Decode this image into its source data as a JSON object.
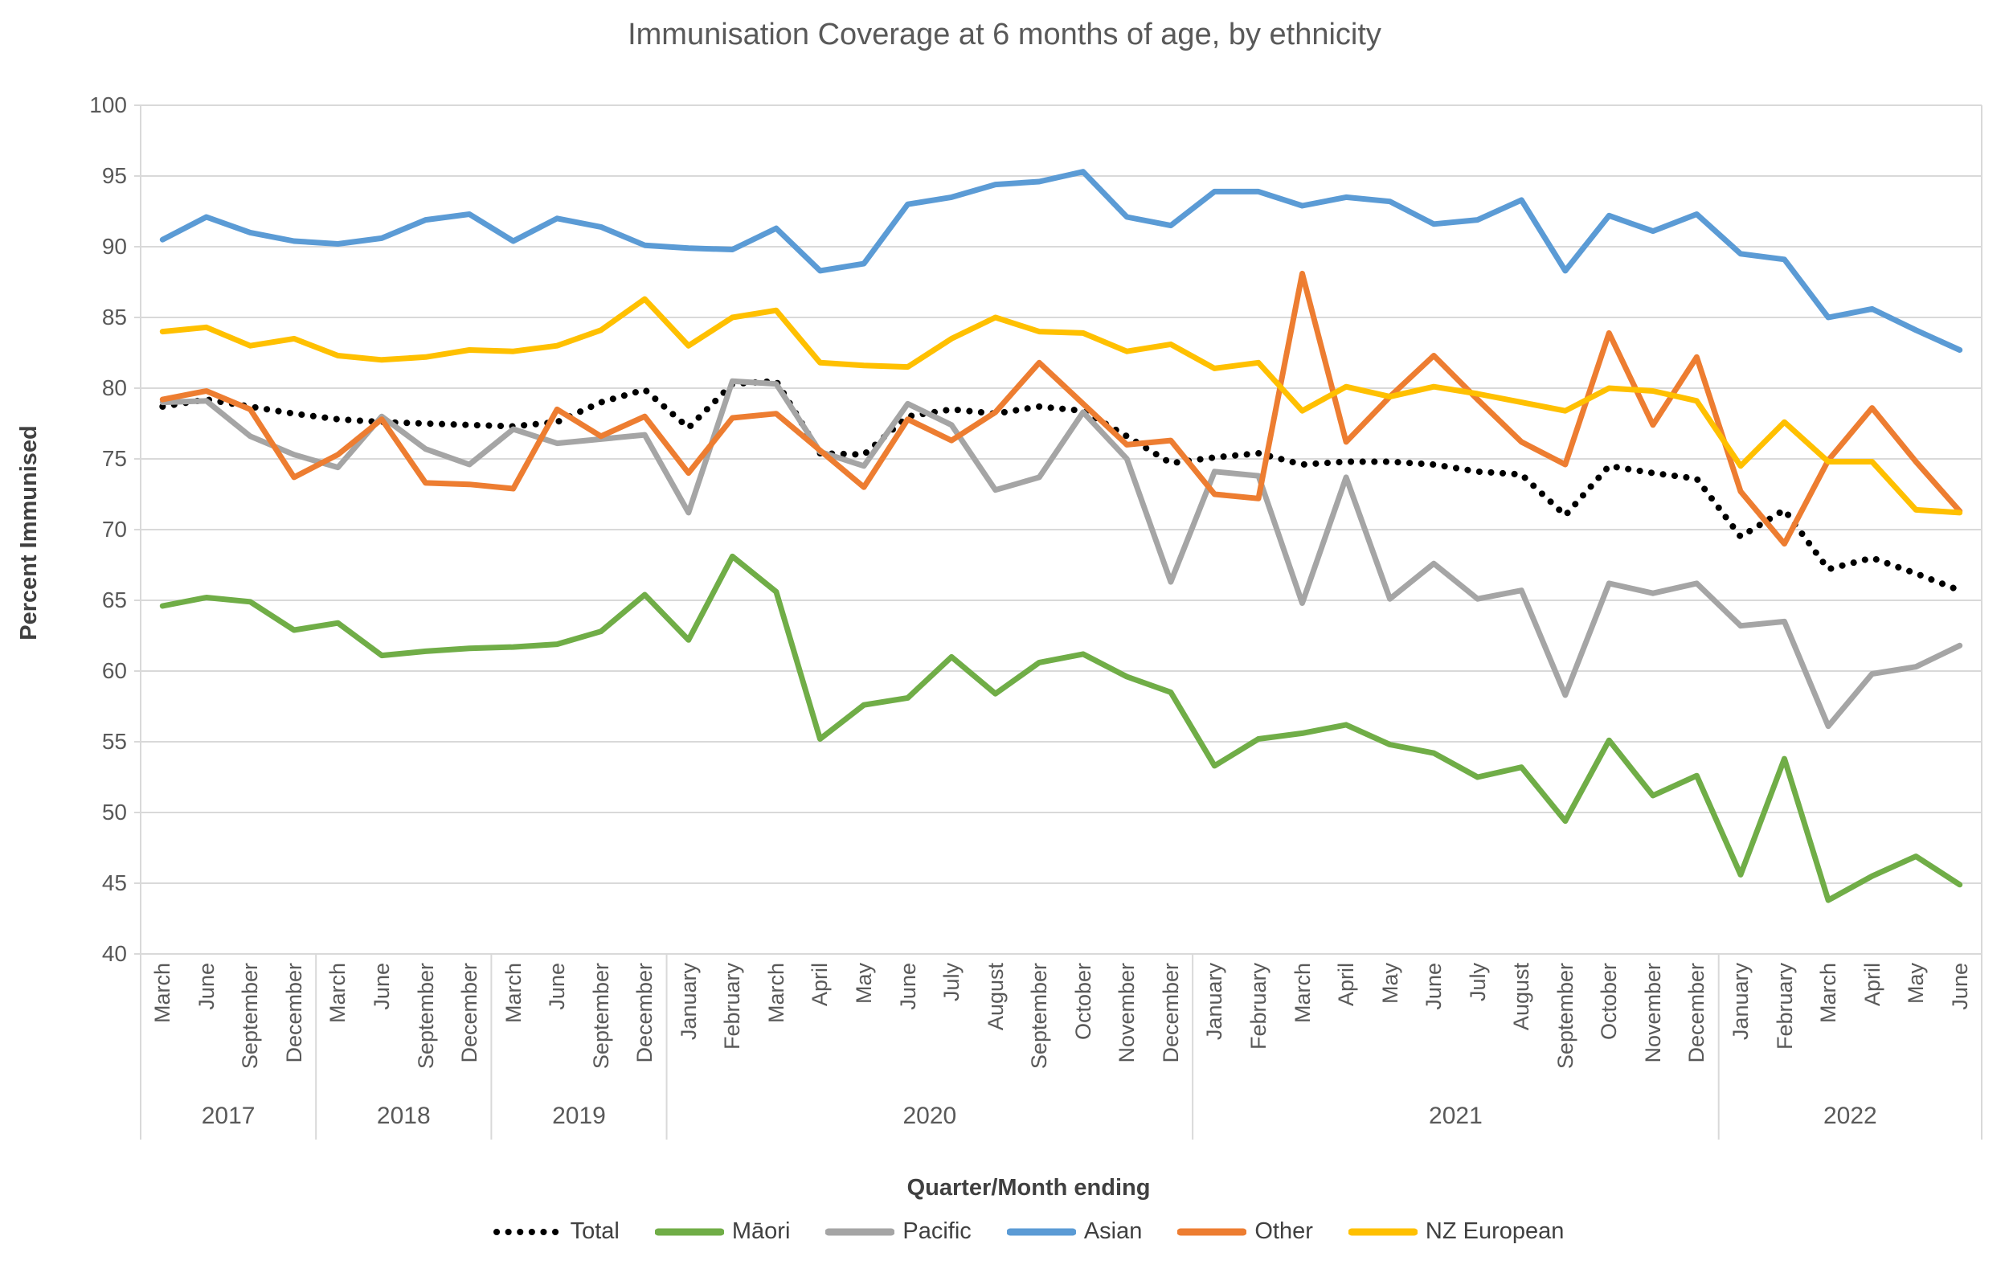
{
  "chart_data": {
    "type": "line",
    "title": "Immunisation Coverage at 6 months of age, by ethnicity",
    "xlabel": "Quarter/Month ending",
    "ylabel": "Percent Immunised",
    "ylim": [
      40,
      100
    ],
    "ytick_step": 5,
    "yticks": [
      100,
      95,
      90,
      85,
      80,
      75,
      70,
      65,
      60,
      55,
      50,
      45,
      40
    ],
    "grid": true,
    "legend_position": "bottom",
    "x_axis": {
      "year_groups": [
        {
          "year": "2017",
          "months": [
            "March",
            "June",
            "September",
            "December"
          ]
        },
        {
          "year": "2018",
          "months": [
            "March",
            "June",
            "September",
            "December"
          ]
        },
        {
          "year": "2019",
          "months": [
            "March",
            "June",
            "September",
            "December"
          ]
        },
        {
          "year": "2020",
          "months": [
            "January",
            "February",
            "March",
            "April",
            "May",
            "June",
            "July",
            "August",
            "September",
            "October",
            "November",
            "December"
          ]
        },
        {
          "year": "2021",
          "months": [
            "January",
            "February",
            "March",
            "April",
            "May",
            "June",
            "July",
            "August",
            "September",
            "October",
            "November",
            "December"
          ]
        },
        {
          "year": "2022",
          "months": [
            "January",
            "February",
            "March",
            "April",
            "May",
            "June"
          ]
        }
      ]
    },
    "series": [
      {
        "name": "Total",
        "color": "#000000",
        "style": "dotted",
        "values": [
          78.7,
          79.2,
          78.7,
          78.2,
          77.8,
          77.6,
          77.5,
          77.4,
          77.3,
          77.6,
          79.0,
          79.9,
          77.2,
          80.3,
          80.5,
          75.4,
          75.3,
          78.0,
          78.5,
          78.2,
          78.7,
          78.4,
          76.6,
          74.7,
          75.1,
          75.4,
          74.6,
          74.8,
          74.8,
          74.6,
          74.1,
          73.9,
          71.0,
          74.5,
          74.0,
          73.6,
          69.5,
          71.4,
          67.2,
          68.0,
          66.9,
          65.7
        ]
      },
      {
        "name": "Māori",
        "color": "#70AD47",
        "style": "solid",
        "values": [
          64.6,
          65.2,
          64.9,
          62.9,
          63.4,
          61.1,
          61.4,
          61.6,
          61.7,
          61.9,
          62.8,
          65.4,
          62.2,
          68.1,
          65.6,
          55.2,
          57.6,
          58.1,
          61.0,
          58.4,
          60.6,
          61.2,
          59.6,
          58.5,
          53.3,
          55.2,
          55.6,
          56.2,
          54.8,
          54.2,
          52.5,
          53.2,
          49.4,
          55.1,
          51.2,
          52.6,
          45.6,
          53.8,
          43.8,
          45.5,
          46.9,
          44.9
        ]
      },
      {
        "name": "Pacific",
        "color": "#A5A5A5",
        "style": "solid",
        "values": [
          79.0,
          79.1,
          76.6,
          75.3,
          74.4,
          78.0,
          75.7,
          74.6,
          77.1,
          76.1,
          76.4,
          76.7,
          71.2,
          80.5,
          80.3,
          75.5,
          74.5,
          78.9,
          77.4,
          72.8,
          73.7,
          78.3,
          75.0,
          66.3,
          74.1,
          73.8,
          64.8,
          73.7,
          65.1,
          67.6,
          65.1,
          65.7,
          58.3,
          66.2,
          65.5,
          66.2,
          63.2,
          63.5,
          56.1,
          59.8,
          60.3,
          61.8
        ]
      },
      {
        "name": "Asian",
        "color": "#5B9BD5",
        "style": "solid",
        "values": [
          90.5,
          92.1,
          91.0,
          90.4,
          90.2,
          90.6,
          91.9,
          92.3,
          90.4,
          92.0,
          91.4,
          90.1,
          89.9,
          89.8,
          91.3,
          88.3,
          88.8,
          93.0,
          93.5,
          94.4,
          94.6,
          95.3,
          92.1,
          91.5,
          93.9,
          93.9,
          92.9,
          93.5,
          93.2,
          91.6,
          91.9,
          93.3,
          88.3,
          92.2,
          91.1,
          92.3,
          89.5,
          89.1,
          85.0,
          85.6,
          84.1,
          82.7
        ]
      },
      {
        "name": "Other",
        "color": "#ED7D31",
        "style": "solid",
        "values": [
          79.2,
          79.8,
          78.5,
          73.7,
          75.3,
          77.8,
          73.3,
          73.2,
          72.9,
          78.5,
          76.6,
          78.0,
          74.0,
          77.9,
          78.2,
          75.6,
          73.0,
          77.8,
          76.3,
          78.3,
          81.8,
          78.9,
          76.0,
          76.3,
          72.5,
          72.2,
          88.1,
          76.2,
          79.4,
          82.3,
          79.2,
          76.2,
          74.6,
          83.9,
          77.4,
          82.2,
          72.7,
          69.0,
          74.9,
          78.6,
          74.8,
          71.3
        ]
      },
      {
        "name": "NZ European",
        "color": "#FFC000",
        "style": "solid",
        "values": [
          84.0,
          84.3,
          83.0,
          83.5,
          82.3,
          82.0,
          82.2,
          82.7,
          82.6,
          83.0,
          84.1,
          86.3,
          83.0,
          85.0,
          85.5,
          81.8,
          81.6,
          81.5,
          83.5,
          85.0,
          84.0,
          83.9,
          82.6,
          83.1,
          81.4,
          81.8,
          78.4,
          80.1,
          79.4,
          80.1,
          79.6,
          79.0,
          78.4,
          80.0,
          79.8,
          79.1,
          74.5,
          77.6,
          74.8,
          74.8,
          71.4,
          71.2
        ]
      }
    ],
    "colors": {
      "grid": "#D9D9D9",
      "axis_text": "#595959",
      "title_text": "#595959",
      "axis_title_text": "#404040"
    }
  }
}
